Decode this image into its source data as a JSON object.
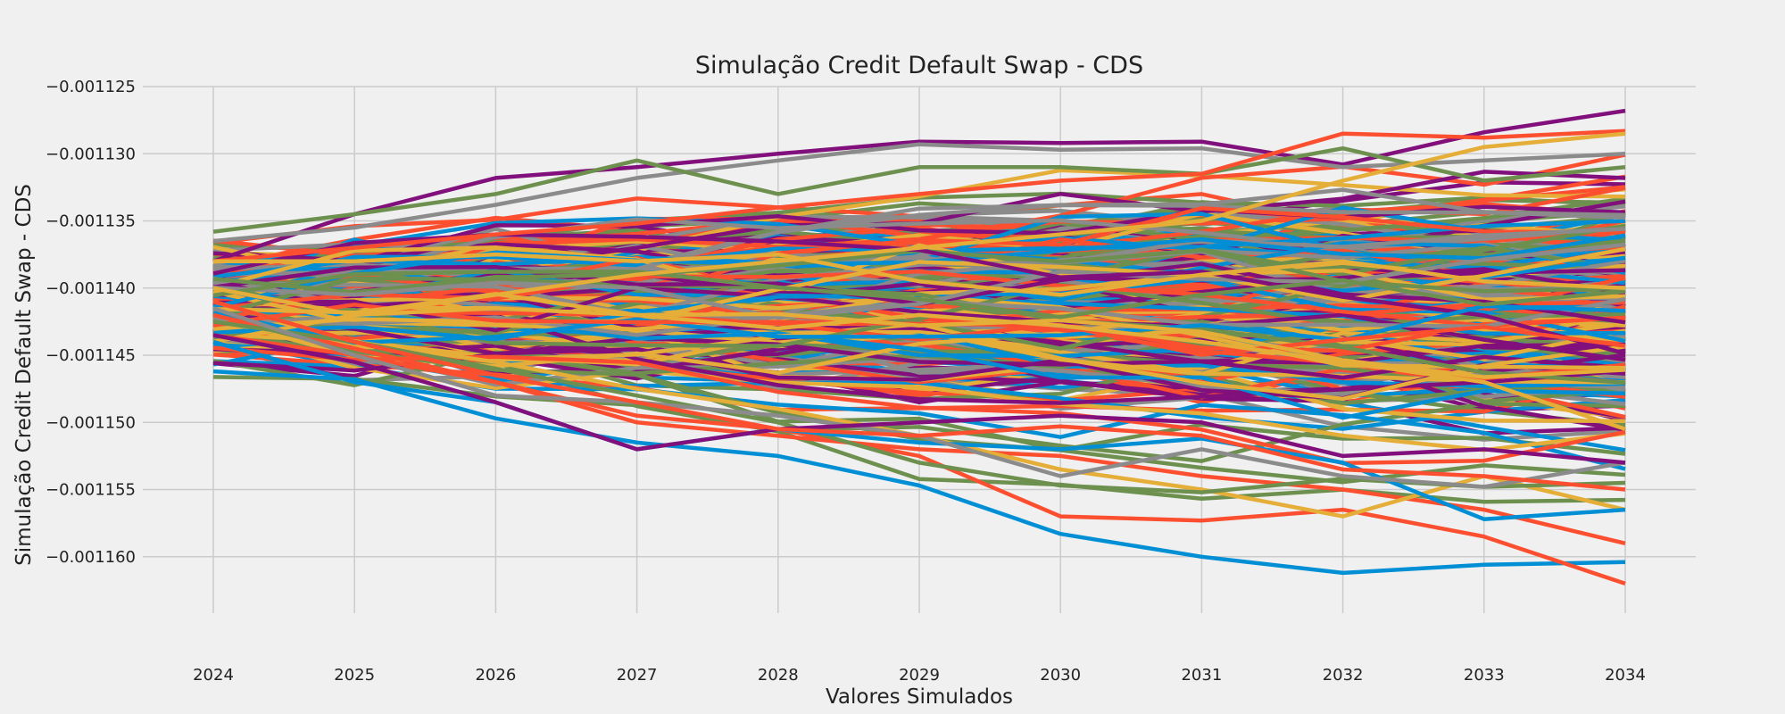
{
  "chart_data": {
    "type": "line",
    "title": "Simulação Credit Default Swap - CDS",
    "xlabel": "Valores Simulados",
    "ylabel": "Simulação Credit Default Swap - CDS",
    "x": [
      "2024",
      "2025",
      "2026",
      "2027",
      "2028",
      "2029",
      "2030",
      "2031",
      "2032",
      "2033",
      "2034"
    ],
    "y_ticks": [
      "−0.001125",
      "−0.001130",
      "−0.001135",
      "−0.001140",
      "−0.001145",
      "−0.001150",
      "−0.001155",
      "−0.001160"
    ],
    "ylim": [
      -0.0011638,
      -0.001125
    ],
    "grid": true,
    "colors": [
      "#008fd5",
      "#fc4f30",
      "#e5ae38",
      "#6d904f",
      "#8b8b8b",
      "#810f7c"
    ],
    "n_background_simulations": 400,
    "series": [
      {
        "values": [
          -0.001138,
          -0.0011345,
          -0.0011318,
          -0.001131,
          -0.00113,
          -0.0011291,
          -0.0011292,
          -0.0011291,
          -0.0011308,
          -0.0011284,
          -0.0011268
        ],
        "color": "#810f7c"
      },
      {
        "values": [
          -0.0011365,
          -0.0011355,
          -0.0011338,
          -0.0011318,
          -0.0011305,
          -0.0011293,
          -0.0011297,
          -0.0011296,
          -0.001131,
          -0.0011305,
          -0.00113
        ],
        "color": "#8b8b8b"
      },
      {
        "values": [
          -0.0011358,
          -0.0011345,
          -0.001133,
          -0.0011305,
          -0.001133,
          -0.001131,
          -0.001131,
          -0.0011315,
          -0.0011296,
          -0.001132,
          -0.001131
        ],
        "color": "#6d904f"
      },
      {
        "values": [
          -0.001138,
          -0.001137,
          -0.001136,
          -0.0011352,
          -0.001134,
          -0.001133,
          -0.001132,
          -0.0011315,
          -0.0011285,
          -0.0011288,
          -0.0011283
        ],
        "color": "#fc4f30"
      },
      {
        "values": [
          -0.001144,
          -0.001142,
          -0.0011405,
          -0.001139,
          -0.001138,
          -0.001137,
          -0.001136,
          -0.001135,
          -0.001132,
          -0.0011295,
          -0.0011285
        ],
        "color": "#e5ae38"
      },
      {
        "values": [
          -0.0011462,
          -0.0011468,
          -0.0011497,
          -0.0011515,
          -0.0011525,
          -0.0011547,
          -0.0011583,
          -0.00116,
          -0.0011612,
          -0.0011606,
          -0.0011604
        ],
        "color": "#008fd5"
      },
      {
        "values": [
          -0.0011435,
          -0.001145,
          -0.001147,
          -0.0011495,
          -0.0011505,
          -0.0011525,
          -0.001157,
          -0.0011573,
          -0.0011565,
          -0.0011585,
          -0.001162
        ],
        "color": "#fc4f30"
      },
      {
        "values": [
          -0.001142,
          -0.0011445,
          -0.001147,
          -0.00115,
          -0.001151,
          -0.001152,
          -0.0011525,
          -0.001154,
          -0.001155,
          -0.0011565,
          -0.001159
        ],
        "color": "#fc4f30"
      },
      {
        "values": [
          -0.001141,
          -0.001144,
          -0.0011455,
          -0.0011475,
          -0.001149,
          -0.001151,
          -0.0011535,
          -0.001155,
          -0.001157,
          -0.001154,
          -0.0011565
        ],
        "color": "#e5ae38"
      },
      {
        "values": [
          -0.0011425,
          -0.001144,
          -0.001146,
          -0.001148,
          -0.00115,
          -0.001153,
          -0.0011547,
          -0.0011552,
          -0.0011542,
          -0.0011548,
          -0.0011545
        ],
        "color": "#6d904f"
      },
      {
        "values": [
          -0.001144,
          -0.001147,
          -0.0011485,
          -0.001152,
          -0.0011505,
          -0.0011515,
          -0.001152,
          -0.0011512,
          -0.001153,
          -0.0011572,
          -0.0011565
        ],
        "color": "#008fd5"
      },
      {
        "values": [
          -0.0011415,
          -0.001145,
          -0.001148,
          -0.0011485,
          -0.0011495,
          -0.001151,
          -0.001154,
          -0.001152,
          -0.001154,
          -0.0011548,
          -0.001153
        ],
        "color": "#8b8b8b"
      },
      {
        "values": [
          -0.0011435,
          -0.0011455,
          -0.0011485,
          -0.001152,
          -0.0011505,
          -0.00115,
          -0.0011495,
          -0.00115,
          -0.0011525,
          -0.001152,
          -0.001153
        ],
        "color": "#810f7c"
      },
      {
        "values": [
          -0.001141,
          -0.001144,
          -0.0011465,
          -0.0011485,
          -0.0011505,
          -0.001151,
          -0.0011503,
          -0.001151,
          -0.0011535,
          -0.001154,
          -0.001155
        ],
        "color": "#fc4f30"
      },
      {
        "values": [
          -0.00114,
          -0.001142,
          -0.0011415,
          -0.001142,
          -0.001143,
          -0.001142,
          -0.0011428,
          -0.001144,
          -0.0011455,
          -0.001147,
          -0.0011505
        ],
        "color": "#e5ae38"
      },
      {
        "values": [
          -0.001138,
          -0.001138,
          -0.0011375,
          -0.001138,
          -0.0011375,
          -0.0011395,
          -0.0011405,
          -0.001139,
          -0.001138,
          -0.0011395,
          -0.00114
        ],
        "color": "#e5ae38"
      }
    ]
  }
}
